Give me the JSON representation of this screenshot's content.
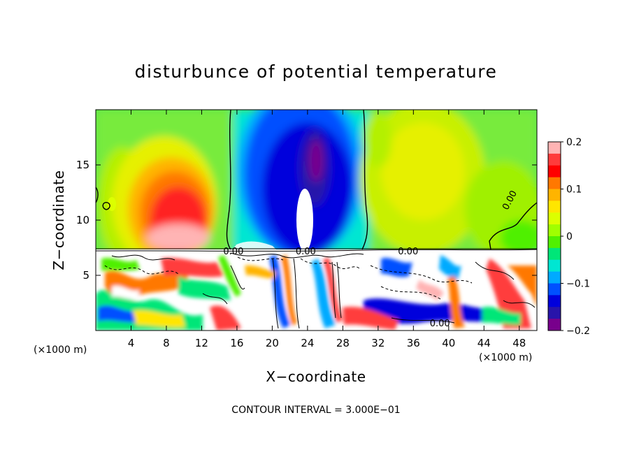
{
  "chart_data": {
    "type": "heatmap",
    "title": "disturbunce of potential temperature",
    "xlabel": "X−coordinate",
    "ylabel": "Z−coordinate",
    "x_unit": "(×1000 m)",
    "x_unit_right": "(×1000 m)",
    "xlim": [
      0,
      50
    ],
    "ylim": [
      0,
      20
    ],
    "x_ticks": [
      4,
      8,
      12,
      16,
      20,
      24,
      28,
      32,
      36,
      40,
      44,
      48
    ],
    "x_tick_labels": [
      "4",
      "8",
      "12",
      "16",
      "20",
      "24",
      "28",
      "32",
      "36",
      "40",
      "44",
      "48"
    ],
    "y_ticks": [
      5,
      10,
      15
    ],
    "y_tick_labels": [
      "5",
      "10",
      "15"
    ],
    "colorbar": {
      "range": [
        -0.2,
        0.2
      ],
      "ticks": [
        0.2,
        0.1,
        0,
        -0.1,
        -0.2
      ],
      "tick_labels": [
        "0.2",
        "0.1",
        "0",
        "−0.1",
        "−0.2"
      ],
      "colors": [
        "#ffb4b4",
        "#ff3c3c",
        "#ff0000",
        "#ff7800",
        "#ffb400",
        "#ffe600",
        "#dcff00",
        "#a0ff00",
        "#50f000",
        "#00e678",
        "#00e6d2",
        "#00aaff",
        "#0050ff",
        "#0000dc",
        "#2814aa",
        "#78008c"
      ]
    },
    "contour_labels": [
      {
        "text": "0.00",
        "x": 15.6,
        "z": 7.2
      },
      {
        "text": "0.00",
        "x": 23.8,
        "z": 7.2
      },
      {
        "text": "0.00",
        "x": 35.4,
        "z": 7.2
      },
      {
        "text": "0.00",
        "x": 47.2,
        "z": 12.0
      },
      {
        "text": "0.00",
        "x": 39.0,
        "z": 0.7
      }
    ],
    "contour_interval_text": "CONTOUR INTERVAL = 3.000E−01"
  }
}
